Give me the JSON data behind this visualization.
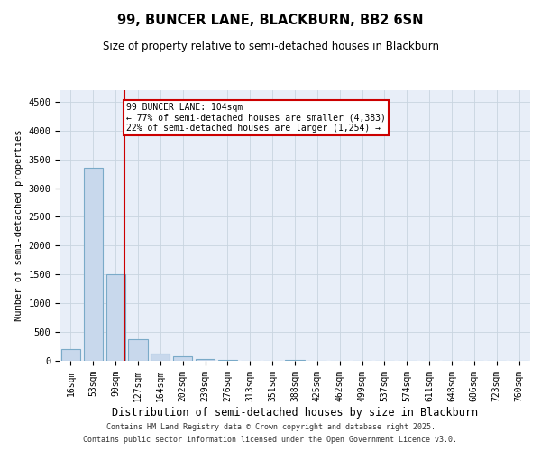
{
  "title1": "99, BUNCER LANE, BLACKBURN, BB2 6SN",
  "title2": "Size of property relative to semi-detached houses in Blackburn",
  "xlabel": "Distribution of semi-detached houses by size in Blackburn",
  "ylabel": "Number of semi-detached properties",
  "categories": [
    "16sqm",
    "53sqm",
    "90sqm",
    "127sqm",
    "164sqm",
    "202sqm",
    "239sqm",
    "276sqm",
    "313sqm",
    "351sqm",
    "388sqm",
    "425sqm",
    "462sqm",
    "499sqm",
    "537sqm",
    "574sqm",
    "611sqm",
    "648sqm",
    "686sqm",
    "723sqm",
    "760sqm"
  ],
  "values": [
    200,
    3350,
    1500,
    370,
    125,
    75,
    35,
    15,
    4,
    2,
    18,
    1,
    0,
    0,
    0,
    0,
    0,
    0,
    0,
    0,
    0
  ],
  "bar_color": "#c8d8ec",
  "bar_edge_color": "#7aaac8",
  "vline_color": "#cc0000",
  "annotation_text": "99 BUNCER LANE: 104sqm\n← 77% of semi-detached houses are smaller (4,383)\n22% of semi-detached houses are larger (1,254) →",
  "annotation_box_color": "#cc0000",
  "ylim": [
    0,
    4700
  ],
  "yticks": [
    0,
    500,
    1000,
    1500,
    2000,
    2500,
    3000,
    3500,
    4000,
    4500
  ],
  "grid_color": "#c8d4e0",
  "background_color": "#e8eef8",
  "footer1": "Contains HM Land Registry data © Crown copyright and database right 2025.",
  "footer2": "Contains public sector information licensed under the Open Government Licence v3.0."
}
